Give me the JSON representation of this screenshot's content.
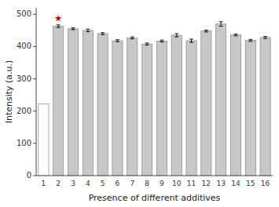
{
  "chart_data": {
    "type": "bar",
    "categories": [
      "1",
      "2",
      "3",
      "4",
      "5",
      "6",
      "7",
      "8",
      "9",
      "10",
      "11",
      "12",
      "13",
      "14",
      "15",
      "16"
    ],
    "values": [
      222,
      463,
      455,
      450,
      440,
      418,
      427,
      408,
      417,
      435,
      418,
      448,
      470,
      436,
      419,
      428
    ],
    "errors": [
      0,
      4,
      3,
      4,
      3,
      3,
      3,
      3,
      3,
      5,
      5,
      3,
      7,
      3,
      3,
      3
    ],
    "colors": [
      "#ffffff",
      "#c8c8c8",
      "#c8c8c8",
      "#c8c8c8",
      "#c8c8c8",
      "#c8c8c8",
      "#c8c8c8",
      "#c8c8c8",
      "#c8c8c8",
      "#c8c8c8",
      "#c8c8c8",
      "#c8c8c8",
      "#c8c8c8",
      "#c8c8c8",
      "#c8c8c8",
      "#c8c8c8"
    ],
    "ylabel": "Intensity (a.u.)",
    "xlabel": "Presence of different additives",
    "ylim": [
      0,
      520
    ],
    "yticks": [
      0,
      100,
      200,
      300,
      400,
      500
    ],
    "grid": false,
    "annotations": [
      {
        "text": "★",
        "x": "2",
        "y": 479,
        "color": "#cc0000"
      }
    ]
  }
}
